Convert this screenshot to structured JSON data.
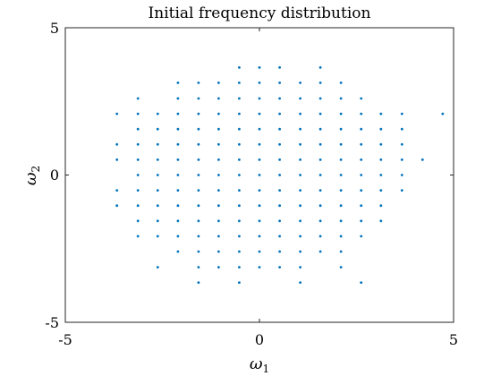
{
  "chart_data": {
    "type": "scatter",
    "title": "Initial frequency distribution",
    "xlabel": "ω",
    "xlabel_sub": "1",
    "ylabel": "ω",
    "ylabel_sub": "2",
    "xlim": [
      -5,
      5
    ],
    "ylim": [
      -5,
      5
    ],
    "x_ticks": [
      "-5",
      "0",
      "5"
    ],
    "y_ticks": [
      "5",
      "0",
      "-5"
    ],
    "grid": false,
    "marker_color": "#0072BD",
    "points": [
      [
        -0.52,
        3.65
      ],
      [
        0.0,
        3.65
      ],
      [
        0.52,
        3.65
      ],
      [
        1.57,
        3.65
      ],
      [
        -2.1,
        3.13
      ],
      [
        -1.57,
        3.13
      ],
      [
        -1.05,
        3.13
      ],
      [
        -0.52,
        3.13
      ],
      [
        0.0,
        3.13
      ],
      [
        0.52,
        3.13
      ],
      [
        1.05,
        3.13
      ],
      [
        1.57,
        3.13
      ],
      [
        2.1,
        3.13
      ],
      [
        -3.13,
        2.6
      ],
      [
        -2.1,
        2.6
      ],
      [
        -1.57,
        2.6
      ],
      [
        -1.05,
        2.6
      ],
      [
        -0.52,
        2.6
      ],
      [
        0.0,
        2.6
      ],
      [
        0.52,
        2.6
      ],
      [
        1.05,
        2.6
      ],
      [
        1.57,
        2.6
      ],
      [
        2.1,
        2.6
      ],
      [
        2.62,
        2.6
      ],
      [
        -3.67,
        2.08
      ],
      [
        -3.13,
        2.08
      ],
      [
        -2.62,
        2.08
      ],
      [
        -2.1,
        2.08
      ],
      [
        -1.57,
        2.08
      ],
      [
        -1.05,
        2.08
      ],
      [
        -0.52,
        2.08
      ],
      [
        0.0,
        2.08
      ],
      [
        0.52,
        2.08
      ],
      [
        1.05,
        2.08
      ],
      [
        1.57,
        2.08
      ],
      [
        2.1,
        2.08
      ],
      [
        2.62,
        2.08
      ],
      [
        3.13,
        2.08
      ],
      [
        3.67,
        2.08
      ],
      [
        4.72,
        2.08
      ],
      [
        -3.13,
        1.56
      ],
      [
        -2.62,
        1.56
      ],
      [
        -2.1,
        1.56
      ],
      [
        -1.57,
        1.56
      ],
      [
        -1.05,
        1.56
      ],
      [
        -0.52,
        1.56
      ],
      [
        0.0,
        1.56
      ],
      [
        0.52,
        1.56
      ],
      [
        1.05,
        1.56
      ],
      [
        1.57,
        1.56
      ],
      [
        2.1,
        1.56
      ],
      [
        2.62,
        1.56
      ],
      [
        3.13,
        1.56
      ],
      [
        3.67,
        1.56
      ],
      [
        -3.67,
        1.04
      ],
      [
        -3.13,
        1.04
      ],
      [
        -2.62,
        1.04
      ],
      [
        -2.1,
        1.04
      ],
      [
        -1.57,
        1.04
      ],
      [
        -1.05,
        1.04
      ],
      [
        -0.52,
        1.04
      ],
      [
        0.0,
        1.04
      ],
      [
        0.52,
        1.04
      ],
      [
        1.05,
        1.04
      ],
      [
        1.57,
        1.04
      ],
      [
        2.1,
        1.04
      ],
      [
        2.62,
        1.04
      ],
      [
        3.13,
        1.04
      ],
      [
        3.67,
        1.04
      ],
      [
        -3.67,
        0.52
      ],
      [
        -3.13,
        0.52
      ],
      [
        -2.62,
        0.52
      ],
      [
        -2.1,
        0.52
      ],
      [
        -1.57,
        0.52
      ],
      [
        -1.05,
        0.52
      ],
      [
        -0.52,
        0.52
      ],
      [
        0.0,
        0.52
      ],
      [
        0.52,
        0.52
      ],
      [
        1.05,
        0.52
      ],
      [
        1.57,
        0.52
      ],
      [
        2.1,
        0.52
      ],
      [
        2.62,
        0.52
      ],
      [
        3.13,
        0.52
      ],
      [
        3.67,
        0.52
      ],
      [
        4.2,
        0.52
      ],
      [
        -3.13,
        0.0
      ],
      [
        -2.62,
        0.0
      ],
      [
        -2.1,
        0.0
      ],
      [
        -1.57,
        0.0
      ],
      [
        -1.05,
        0.0
      ],
      [
        -0.52,
        0.0
      ],
      [
        0.0,
        0.0
      ],
      [
        0.52,
        0.0
      ],
      [
        1.05,
        0.0
      ],
      [
        1.57,
        0.0
      ],
      [
        2.1,
        0.0
      ],
      [
        2.62,
        0.0
      ],
      [
        3.13,
        0.0
      ],
      [
        3.67,
        0.0
      ],
      [
        -3.67,
        -0.52
      ],
      [
        -3.13,
        -0.52
      ],
      [
        -2.62,
        -0.52
      ],
      [
        -2.1,
        -0.52
      ],
      [
        -1.57,
        -0.52
      ],
      [
        -1.05,
        -0.52
      ],
      [
        -0.52,
        -0.52
      ],
      [
        0.0,
        -0.52
      ],
      [
        0.52,
        -0.52
      ],
      [
        1.05,
        -0.52
      ],
      [
        1.57,
        -0.52
      ],
      [
        2.1,
        -0.52
      ],
      [
        2.62,
        -0.52
      ],
      [
        3.13,
        -0.52
      ],
      [
        3.67,
        -0.52
      ],
      [
        -3.67,
        -1.04
      ],
      [
        -3.13,
        -1.04
      ],
      [
        -2.62,
        -1.04
      ],
      [
        -2.1,
        -1.04
      ],
      [
        -1.57,
        -1.04
      ],
      [
        -1.05,
        -1.04
      ],
      [
        -0.52,
        -1.04
      ],
      [
        0.0,
        -1.04
      ],
      [
        0.52,
        -1.04
      ],
      [
        1.05,
        -1.04
      ],
      [
        1.57,
        -1.04
      ],
      [
        2.1,
        -1.04
      ],
      [
        2.62,
        -1.04
      ],
      [
        3.13,
        -1.04
      ],
      [
        -3.13,
        -1.56
      ],
      [
        -2.62,
        -1.56
      ],
      [
        -2.1,
        -1.56
      ],
      [
        -1.57,
        -1.56
      ],
      [
        -1.05,
        -1.56
      ],
      [
        -0.52,
        -1.56
      ],
      [
        0.0,
        -1.56
      ],
      [
        0.52,
        -1.56
      ],
      [
        1.05,
        -1.56
      ],
      [
        1.57,
        -1.56
      ],
      [
        2.1,
        -1.56
      ],
      [
        2.62,
        -1.56
      ],
      [
        3.13,
        -1.56
      ],
      [
        -3.13,
        -2.08
      ],
      [
        -2.62,
        -2.08
      ],
      [
        -2.1,
        -2.08
      ],
      [
        -1.57,
        -2.08
      ],
      [
        -1.05,
        -2.08
      ],
      [
        -0.52,
        -2.08
      ],
      [
        0.0,
        -2.08
      ],
      [
        0.52,
        -2.08
      ],
      [
        1.05,
        -2.08
      ],
      [
        1.57,
        -2.08
      ],
      [
        2.1,
        -2.08
      ],
      [
        2.62,
        -2.08
      ],
      [
        -2.1,
        -2.6
      ],
      [
        -1.57,
        -2.6
      ],
      [
        -1.05,
        -2.6
      ],
      [
        -0.52,
        -2.6
      ],
      [
        0.0,
        -2.6
      ],
      [
        0.52,
        -2.6
      ],
      [
        1.05,
        -2.6
      ],
      [
        1.57,
        -2.6
      ],
      [
        2.1,
        -2.6
      ],
      [
        -2.62,
        -3.13
      ],
      [
        -1.57,
        -3.13
      ],
      [
        -1.05,
        -3.13
      ],
      [
        -0.52,
        -3.13
      ],
      [
        0.0,
        -3.13
      ],
      [
        0.52,
        -3.13
      ],
      [
        1.05,
        -3.13
      ],
      [
        2.1,
        -3.13
      ],
      [
        -1.57,
        -3.65
      ],
      [
        -0.52,
        -3.65
      ],
      [
        1.05,
        -3.65
      ],
      [
        2.62,
        -3.65
      ]
    ]
  }
}
